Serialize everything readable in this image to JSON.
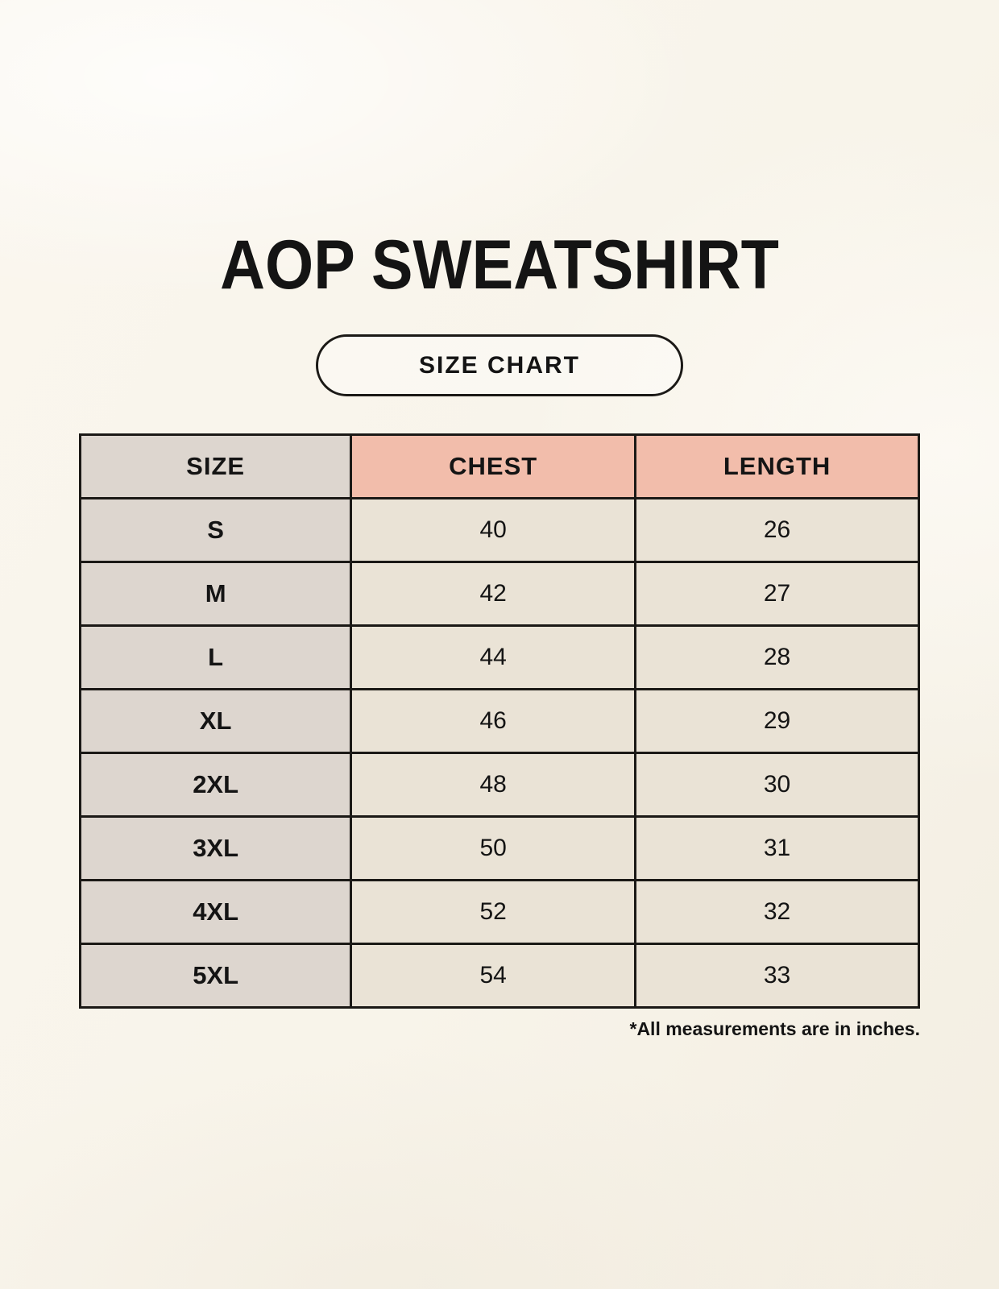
{
  "header": {
    "title": "AOP SWEATSHIRT",
    "badge": "SIZE CHART"
  },
  "footer": {
    "note": "*All measurements are in inches."
  },
  "colors": {
    "page_bg": "#f8f4ea",
    "size_col_bg": "#ddd6cf",
    "measure_header_bg": "#f2bdab",
    "value_cell_bg": "#eae3d6",
    "table_border": "#1b1916",
    "text": "#141414"
  },
  "chart_data": {
    "type": "table",
    "title": "AOP SWEATSHIRT",
    "columns": [
      "SIZE",
      "CHEST",
      "LENGTH"
    ],
    "rows": [
      [
        "S",
        "40",
        "26"
      ],
      [
        "M",
        "42",
        "27"
      ],
      [
        "L",
        "44",
        "28"
      ],
      [
        "XL",
        "46",
        "29"
      ],
      [
        "2XL",
        "48",
        "30"
      ],
      [
        "3XL",
        "50",
        "31"
      ],
      [
        "4XL",
        "52",
        "32"
      ],
      [
        "5XL",
        "54",
        "33"
      ]
    ],
    "units_note": "*All measurements are in inches."
  }
}
